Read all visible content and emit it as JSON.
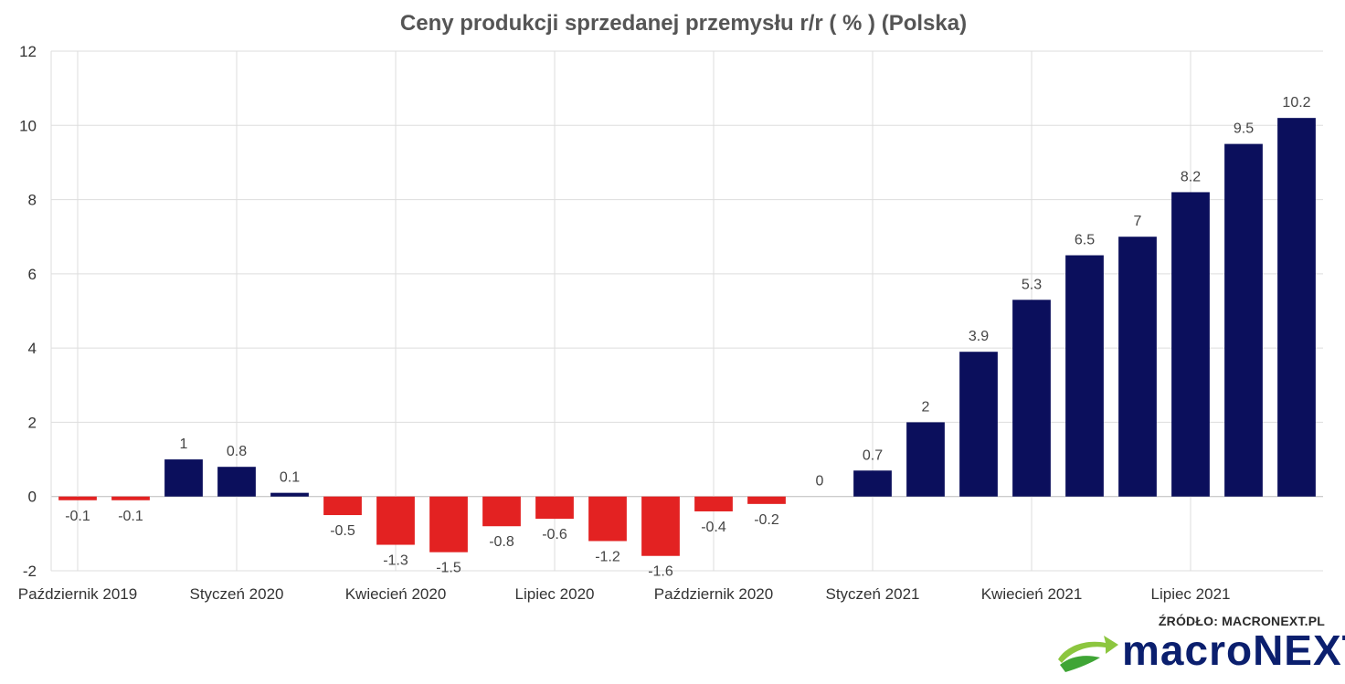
{
  "chart_data": {
    "type": "bar",
    "title": "Ceny produkcji sprzedanej przemysłu r/r ( % ) (Polska)",
    "xlabel": "",
    "ylabel": "",
    "ylim": [
      -2,
      12
    ],
    "yticks": [
      12,
      10,
      8,
      6,
      4,
      2,
      0,
      -2
    ],
    "grid": true,
    "positive_color": "#0b0f5c",
    "negative_color": "#e32222",
    "categories": [
      "2019-10",
      "2019-11",
      "2019-12",
      "2020-01",
      "2020-02",
      "2020-03",
      "2020-04",
      "2020-05",
      "2020-06",
      "2020-07",
      "2020-08",
      "2020-09",
      "2020-10",
      "2020-11",
      "2020-12",
      "2021-01",
      "2021-02",
      "2021-03",
      "2021-04",
      "2021-05",
      "2021-06",
      "2021-07",
      "2021-08",
      "2021-09"
    ],
    "values": [
      -0.1,
      -0.1,
      1,
      0.8,
      0.1,
      -0.5,
      -1.3,
      -1.5,
      -0.8,
      -0.6,
      -1.2,
      -1.6,
      -0.4,
      -0.2,
      0,
      0.7,
      2,
      3.9,
      5.3,
      6.5,
      7,
      8.2,
      9.5,
      10.2
    ],
    "value_labels": [
      "-0.1",
      "-0.1",
      "1",
      "0.8",
      "0.1",
      "-0.5",
      "-1.3",
      "-1.5",
      "-0.8",
      "-0.6",
      "-1.2",
      "-1.6",
      "-0.4",
      "-0.2",
      "0",
      "0.7",
      "2",
      "3.9",
      "5.3",
      "6.5",
      "7",
      "8.2",
      "9.5",
      "10.2"
    ],
    "x_tick_labels": [
      {
        "label": "Październik 2019",
        "index": 0
      },
      {
        "label": "Styczeń 2020",
        "index": 3
      },
      {
        "label": "Kwiecień 2020",
        "index": 6
      },
      {
        "label": "Lipiec 2020",
        "index": 9
      },
      {
        "label": "Październik 2020",
        "index": 12
      },
      {
        "label": "Styczeń 2021",
        "index": 15
      },
      {
        "label": "Kwiecień 2021",
        "index": 18
      },
      {
        "label": "Lipiec 2021",
        "index": 21
      }
    ]
  },
  "branding": {
    "source": "ŹRÓDŁO: MACRONEXT.PL",
    "logo_text": "macroNEXT",
    "logo_icon": "swoosh-arrow-icon",
    "logo_color": "#0b1f6e",
    "logo_accent": "#8cc63f"
  }
}
